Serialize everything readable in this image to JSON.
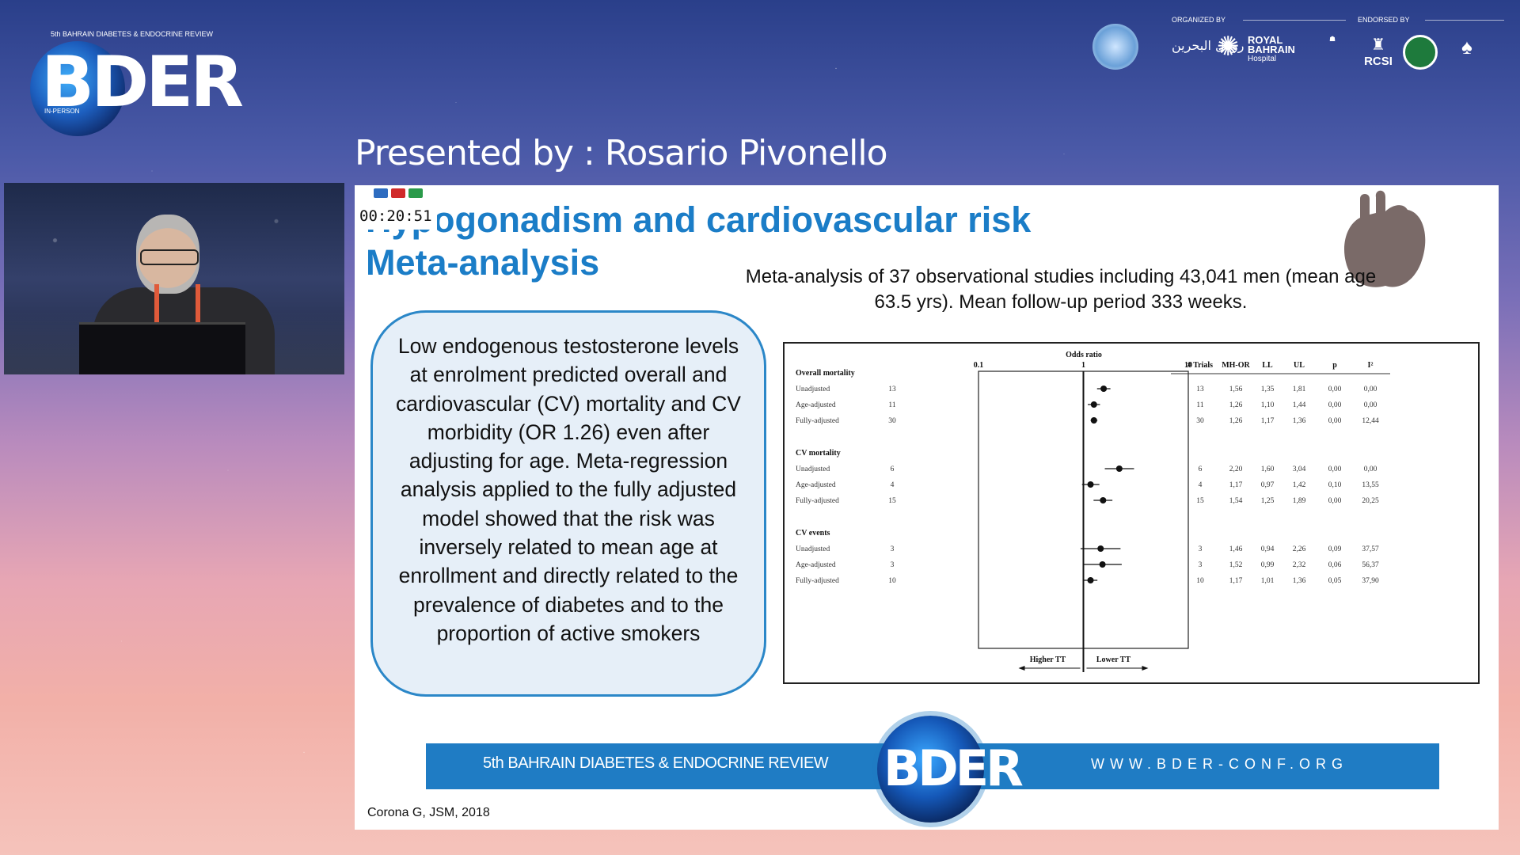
{
  "brand": {
    "logo_text": "BDER",
    "edition_label": "5th BAHRAIN DIABETES & ENDOCRINE REVIEW",
    "mode_label": "IN-PERSON"
  },
  "sponsors": {
    "organized_by": "ORGANIZED BY",
    "endorsed_by": "ENDORSED BY",
    "arabic_name": "رويال البحرين",
    "royal_line1": "ROYAL",
    "royal_line2": "BAHRAIN",
    "royal_line3": "Hospital",
    "rcsi": "RCSI"
  },
  "presenter": "Presented by : Rosario Pivonello",
  "webcam": {
    "label": "speaker-video"
  },
  "slide": {
    "timer": "00:20:51",
    "title": "Hypogonadism and cardiovascular risk",
    "subtitle": "Meta-analysis",
    "summary": "Meta-analysis of 37 observational studies including 43,041 men (mean age 63.5 yrs). Mean follow-up period 333 weeks.",
    "callout": "Low endogenous testosterone levels at enrolment predicted overall and cardiovascular (CV) mortality and CV morbidity (OR 1.26) even after adjusting for age. Meta-regression analysis applied to the fully adjusted model showed that the risk was inversely related to mean age at enrollment and directly related to the prevalence of diabetes and to the proportion of active smokers",
    "citation": "Corona G, JSM, 2018",
    "banner_left": "5th BAHRAIN DIABETES & ENDOCRINE REVIEW",
    "banner_url": "WWW.BDER-CONF.ORG",
    "banner_globe_text": "BDER",
    "colors": {
      "title": "#1b7dc7",
      "banner": "#1f7cc4",
      "callout_border": "#2b87c8",
      "callout_fill": "#e6eff8",
      "heart": "#7a6a68"
    }
  },
  "chart_data": {
    "type": "forest",
    "title": "Odds ratio",
    "x_ticks": [
      "0.1",
      "1",
      "10"
    ],
    "xlim": [
      0.1,
      10
    ],
    "scale": "log",
    "bottom_labels": [
      "Higher TT",
      "Lower TT"
    ],
    "columns": [
      "# Trials",
      "MH-OR",
      "LL",
      "UL",
      "p",
      "I²"
    ],
    "groups": [
      {
        "name": "Overall mortality",
        "rows": [
          {
            "label": "Unadjusted",
            "n": "13",
            "or": "1,56",
            "ll": "1,35",
            "ul": "1,81",
            "p": "0,00",
            "i2": "0,00",
            "or_val": 1.56,
            "ll_val": 1.35,
            "ul_val": 1.81
          },
          {
            "label": "Age-adjusted",
            "n": "11",
            "or": "1,26",
            "ll": "1,10",
            "ul": "1,44",
            "p": "0,00",
            "i2": "0,00",
            "or_val": 1.26,
            "ll_val": 1.1,
            "ul_val": 1.44
          },
          {
            "label": "Fully-adjusted",
            "n": "30",
            "or": "1,26",
            "ll": "1,17",
            "ul": "1,36",
            "p": "0,00",
            "i2": "12,44",
            "or_val": 1.26,
            "ll_val": 1.17,
            "ul_val": 1.36
          }
        ]
      },
      {
        "name": "CV mortality",
        "rows": [
          {
            "label": "Unadjusted",
            "n": "6",
            "or": "2,20",
            "ll": "1,60",
            "ul": "3,04",
            "p": "0,00",
            "i2": "0,00",
            "or_val": 2.2,
            "ll_val": 1.6,
            "ul_val": 3.04
          },
          {
            "label": "Age-adjusted",
            "n": "4",
            "or": "1,17",
            "ll": "0,97",
            "ul": "1,42",
            "p": "0,10",
            "i2": "13,55",
            "or_val": 1.17,
            "ll_val": 0.97,
            "ul_val": 1.42
          },
          {
            "label": "Fully-adjusted",
            "n": "15",
            "or": "1,54",
            "ll": "1,25",
            "ul": "1,89",
            "p": "0,00",
            "i2": "20,25",
            "or_val": 1.54,
            "ll_val": 1.25,
            "ul_val": 1.89
          }
        ]
      },
      {
        "name": "CV events",
        "rows": [
          {
            "label": "Unadjusted",
            "n": "3",
            "or": "1,46",
            "ll": "0,94",
            "ul": "2,26",
            "p": "0,09",
            "i2": "37,57",
            "or_val": 1.46,
            "ll_val": 0.94,
            "ul_val": 2.26
          },
          {
            "label": "Age-adjusted",
            "n": "3",
            "or": "1,52",
            "ll": "0,99",
            "ul": "2,32",
            "p": "0,06",
            "i2": "56,37",
            "or_val": 1.52,
            "ll_val": 0.99,
            "ul_val": 2.32
          },
          {
            "label": "Fully-adjusted",
            "n": "10",
            "or": "1,17",
            "ll": "1,01",
            "ul": "1,36",
            "p": "0,05",
            "i2": "37,90",
            "or_val": 1.17,
            "ll_val": 1.01,
            "ul_val": 1.36
          }
        ]
      }
    ]
  }
}
